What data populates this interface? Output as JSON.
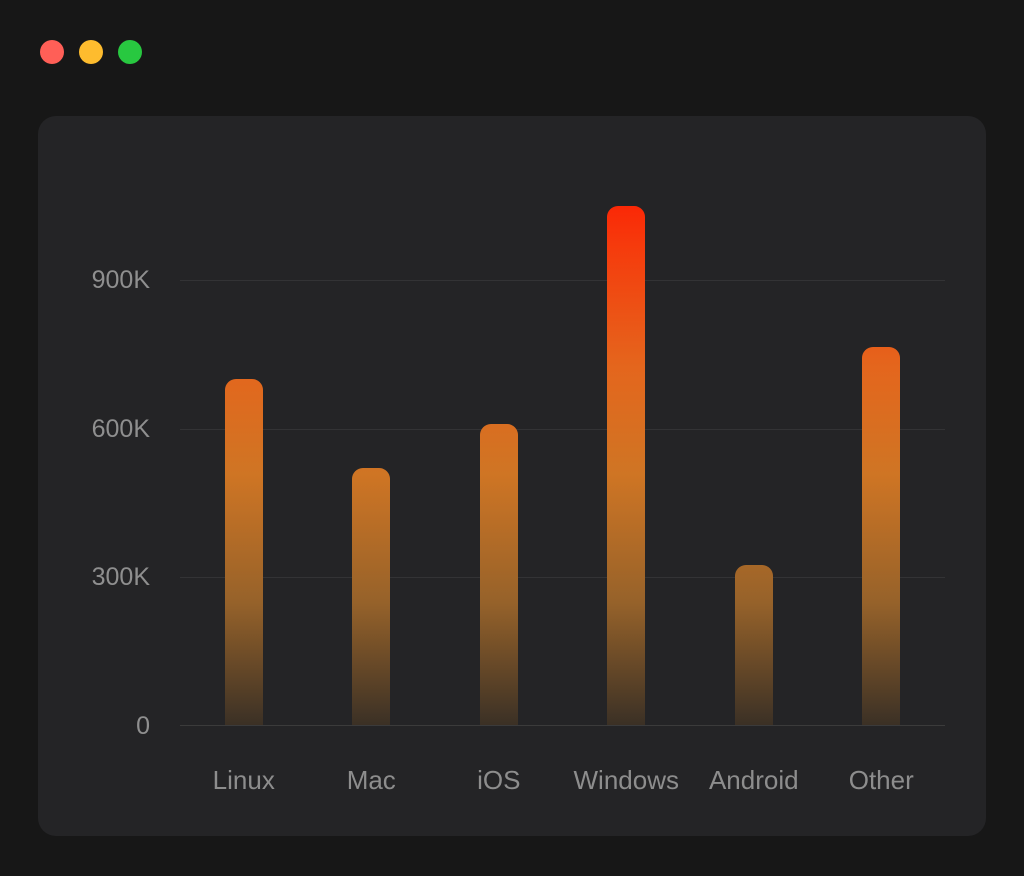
{
  "window": {
    "controls": [
      {
        "name": "close",
        "color": "#ff5f57"
      },
      {
        "name": "minimize",
        "color": "#febc2e"
      },
      {
        "name": "zoom",
        "color": "#28c840"
      }
    ]
  },
  "chart_data": {
    "type": "bar",
    "title": "",
    "xlabel": "",
    "ylabel": "",
    "categories": [
      "Linux",
      "Mac",
      "iOS",
      "Windows",
      "Android",
      "Other"
    ],
    "values": [
      700000,
      520000,
      610000,
      1050000,
      325000,
      765000
    ],
    "ylim": [
      0,
      1130000
    ],
    "yticks": [
      {
        "value": 0,
        "label": "0"
      },
      {
        "value": 300000,
        "label": "300K"
      },
      {
        "value": 600000,
        "label": "600K"
      },
      {
        "value": 900000,
        "label": "900K"
      }
    ],
    "grid": true,
    "legend": false,
    "bar_gradient": [
      "#ff1500",
      "#e4661d",
      "#3a3025"
    ],
    "background": "#242426"
  }
}
